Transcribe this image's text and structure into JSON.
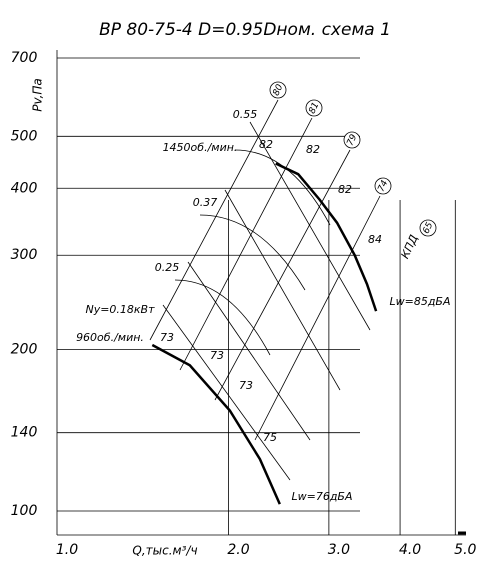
{
  "chart_data": {
    "type": "line",
    "title": "ВР 80-75-4 D=0.95Dном. схема 1",
    "y_label": "Pv,Па",
    "x_label": "Q,тыс.м³/ч",
    "xscale": "log",
    "yscale": "log",
    "xlim": [
      1.0,
      5.2
    ],
    "ylim": [
      100,
      700
    ],
    "xticks": [
      {
        "value": 1,
        "label": "1.0"
      },
      {
        "value": 2,
        "label": "2.0"
      },
      {
        "value": 3,
        "label": "3.0"
      },
      {
        "value": 4,
        "label": "4.0"
      },
      {
        "value": 5,
        "label": "5.0"
      }
    ],
    "yticks": [
      100,
      140,
      200,
      300,
      400,
      500,
      700
    ],
    "grid": true,
    "series": [
      {
        "name": "1450об./мин.",
        "color": "#000000",
        "x": [
          2.42,
          2.65,
          2.89,
          3.1,
          3.33,
          3.5,
          3.63
        ],
        "values": [
          445,
          425,
          381,
          345,
          300,
          265,
          236
        ]
      },
      {
        "name": "960об./мин.",
        "color": "#000000",
        "x": [
          1.47,
          1.71,
          2.01,
          2.27,
          2.46
        ],
        "values": [
          204,
          187,
          154,
          125,
          103
        ]
      }
    ],
    "annotations": [
      "0.55",
      "0.37",
      "0.25",
      "Ny=0.18кВт",
      "82",
      "82",
      "82",
      "84",
      "73",
      "73",
      "73",
      "75",
      "Lw=85дБА",
      "Lw=76дБА",
      "КПД"
    ],
    "efficiency_labels": [
      "80",
      "81",
      "79",
      "74",
      "65"
    ]
  }
}
